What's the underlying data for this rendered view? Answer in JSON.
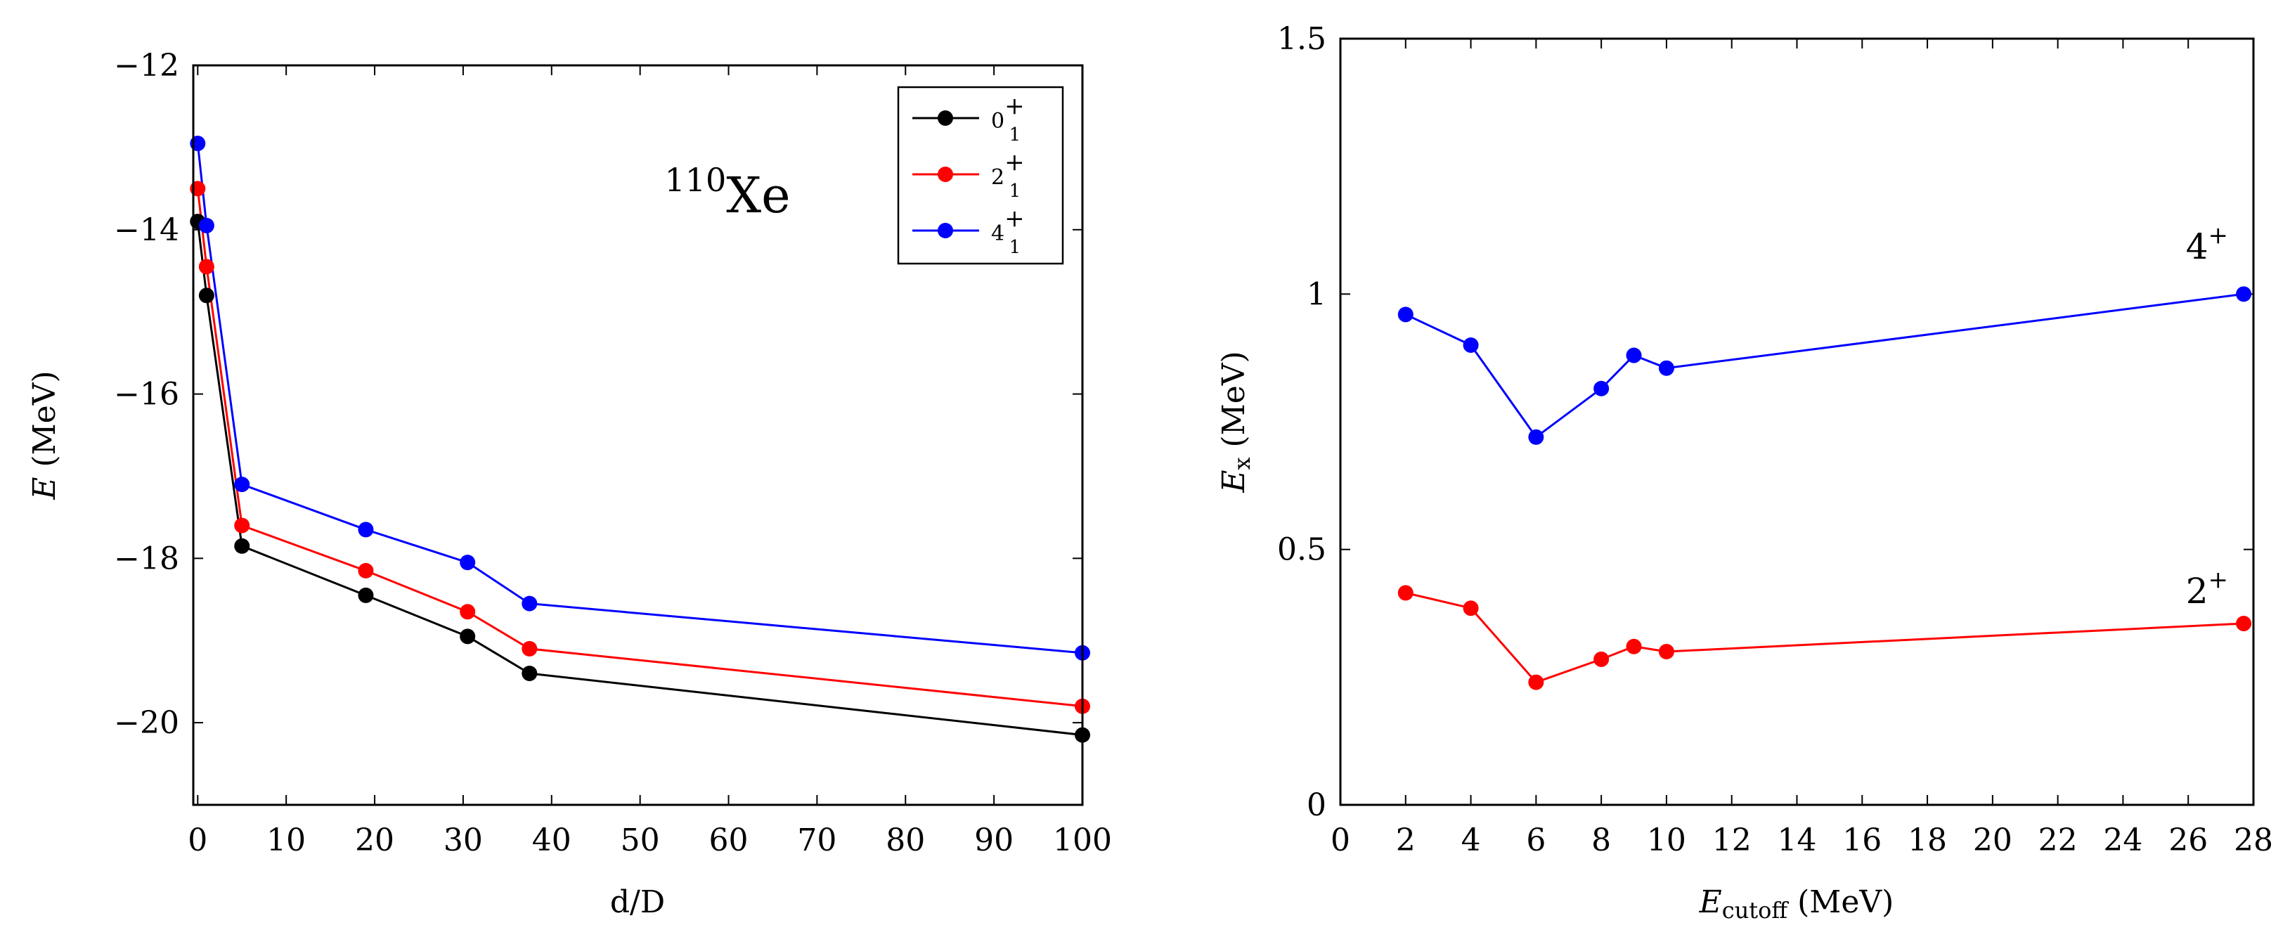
{
  "chart_data": [
    {
      "type": "line",
      "annotation": {
        "base": "Xe",
        "sup": "110"
      },
      "xlabel": "d/D",
      "ylabel": {
        "main": "E",
        "rest": " (MeV)"
      },
      "xlim": [
        -0.5,
        100
      ],
      "ylim": [
        -21,
        -12
      ],
      "xticks": [
        0,
        10,
        20,
        30,
        40,
        50,
        60,
        70,
        80,
        90,
        100
      ],
      "yticks": [
        -12,
        -14,
        -16,
        -18,
        -20
      ],
      "ytick_labels": [
        "−12",
        "−14",
        "−16",
        "−18",
        "−20"
      ],
      "legend_position": "top-right",
      "series": [
        {
          "name": "0",
          "sup": "+",
          "sub": "1",
          "color": "#000000",
          "x": [
            0,
            1,
            5,
            19,
            30.5,
            37.5,
            100
          ],
          "y": [
            -13.9,
            -14.8,
            -17.85,
            -18.45,
            -18.95,
            -19.4,
            -20.15
          ]
        },
        {
          "name": "2",
          "sup": "+",
          "sub": "1",
          "color": "#ff0000",
          "x": [
            0,
            1,
            5,
            19,
            30.5,
            37.5,
            100
          ],
          "y": [
            -13.5,
            -14.45,
            -17.6,
            -18.15,
            -18.65,
            -19.1,
            -19.8
          ]
        },
        {
          "name": "4",
          "sup": "+",
          "sub": "1",
          "color": "#0000ff",
          "x": [
            0,
            1,
            5,
            19,
            30.5,
            37.5,
            100
          ],
          "y": [
            -12.95,
            -13.95,
            -17.1,
            -17.65,
            -18.05,
            -18.55,
            -19.15
          ]
        }
      ]
    },
    {
      "type": "line",
      "xlabel": {
        "main": "E",
        "sub": "cutoff",
        "rest": " (MeV)"
      },
      "ylabel": {
        "main": "E",
        "sub": "x",
        "rest": " (MeV)"
      },
      "xlim": [
        0,
        28
      ],
      "ylim": [
        0,
        1.5
      ],
      "xticks": [
        0,
        2,
        4,
        6,
        8,
        10,
        12,
        14,
        16,
        18,
        20,
        22,
        24,
        26,
        28
      ],
      "yticks": [
        0,
        0.5,
        1,
        1.5
      ],
      "ytick_labels": [
        "0",
        "0.5",
        "1",
        "1.5"
      ],
      "series": [
        {
          "name": "4",
          "sup": "+",
          "color": "#0000ff",
          "x": [
            2,
            4,
            6,
            8,
            9,
            10,
            27.7
          ],
          "y": [
            0.96,
            0.9,
            0.72,
            0.815,
            0.88,
            0.855,
            1.0
          ]
        },
        {
          "name": "2",
          "sup": "+",
          "color": "#ff0000",
          "x": [
            2,
            4,
            6,
            8,
            9,
            10,
            27.7
          ],
          "y": [
            0.415,
            0.385,
            0.24,
            0.285,
            0.31,
            0.3,
            0.355
          ]
        }
      ]
    }
  ]
}
